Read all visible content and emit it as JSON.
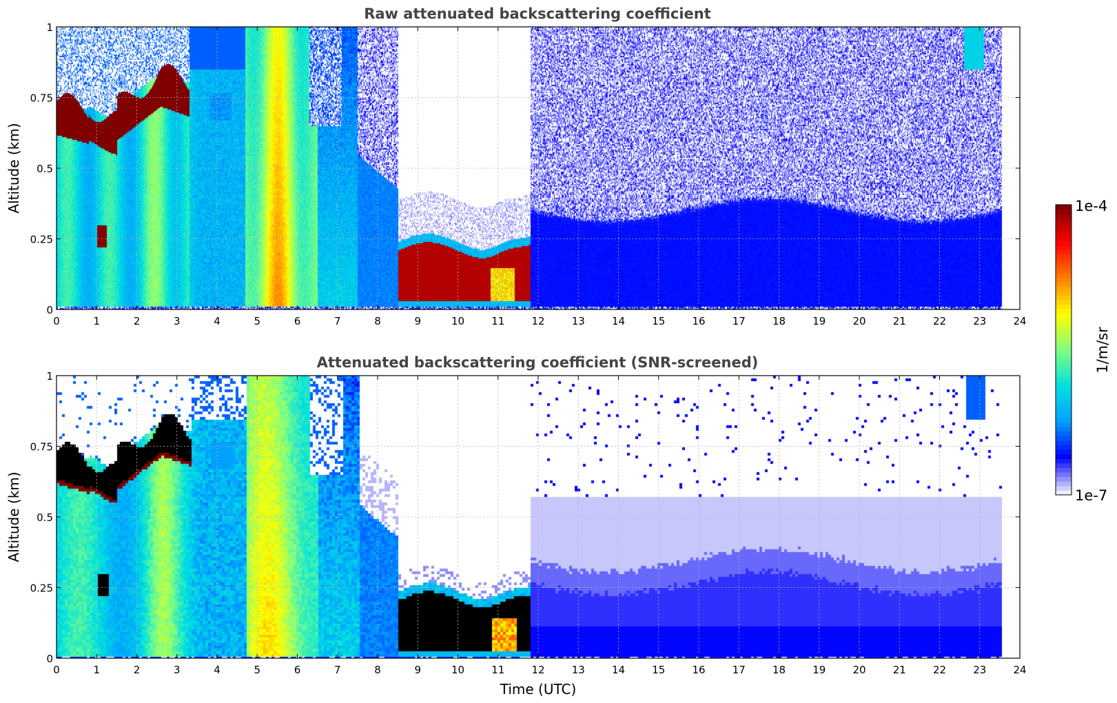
{
  "colors": {
    "colormap": [
      "#ededfb",
      "#0000ff",
      "#00a0ff",
      "#00e0e0",
      "#80ff80",
      "#ffff00",
      "#ff8000",
      "#ff0000",
      "#800000"
    ],
    "saturated_bottom_panel": "#000000",
    "grid": "#b4b4b4"
  },
  "colorbar": {
    "label": "1/m/sr",
    "min_label": "1e-7",
    "max_label": "1e-4",
    "scale": "log",
    "range": [
      1e-07,
      0.0001
    ]
  },
  "chart_data": [
    {
      "type": "heatmap",
      "title": "Raw attenuated backscattering coefficient",
      "xlabel": "",
      "ylabel": "Altitude (km)",
      "xlim": [
        0,
        24
      ],
      "ylim": [
        0,
        1
      ],
      "x_ticks": [
        "0",
        "1",
        "2",
        "3",
        "4",
        "5",
        "6",
        "7",
        "8",
        "9",
        "10",
        "11",
        "12",
        "13",
        "14",
        "15",
        "16",
        "17",
        "18",
        "19",
        "20",
        "21",
        "22",
        "23",
        "24"
      ],
      "y_ticks": [
        "0",
        "0.25",
        "0.5",
        "0.75",
        "1"
      ],
      "grid": true,
      "data_extent_hours": [
        0,
        23.55
      ],
      "features": [
        {
          "time_range": [
            0,
            3.3
          ],
          "altitude_range": [
            0.55,
            0.85
          ],
          "level": "max",
          "description": "cloud layer"
        },
        {
          "time_range": [
            1.0,
            1.25
          ],
          "altitude_range": [
            0.23,
            0.3
          ],
          "level": "max"
        },
        {
          "time_range": [
            8.5,
            11.8
          ],
          "altitude_range": [
            0.03,
            0.25
          ],
          "level": "max"
        },
        {
          "time_range": [
            4.7,
            6.5
          ],
          "altitude_range": [
            0,
            1
          ],
          "level": "high"
        },
        {
          "time_range": [
            12.0,
            23.55
          ],
          "altitude_range": [
            0,
            0.35
          ],
          "level": "low"
        }
      ]
    },
    {
      "type": "heatmap",
      "title": "Attenuated backscattering coefficient (SNR-screened)",
      "xlabel": "Time (UTC)",
      "ylabel": "Altitude (km)",
      "xlim": [
        0,
        24
      ],
      "ylim": [
        0,
        1
      ],
      "x_ticks": [
        "0",
        "1",
        "2",
        "3",
        "4",
        "5",
        "6",
        "7",
        "8",
        "9",
        "10",
        "11",
        "12",
        "13",
        "14",
        "15",
        "16",
        "17",
        "18",
        "19",
        "20",
        "21",
        "22",
        "23",
        "24"
      ],
      "y_ticks": [
        "0",
        "0.25",
        "0.5",
        "0.75",
        "1"
      ],
      "grid": true,
      "data_extent_hours": [
        0,
        23.55
      ],
      "features": [
        {
          "time_range": [
            0,
            3.3
          ],
          "altitude_range": [
            0.55,
            0.85
          ],
          "level": "saturated"
        },
        {
          "time_range": [
            1.0,
            1.25
          ],
          "altitude_range": [
            0.23,
            0.3
          ],
          "level": "saturated"
        },
        {
          "time_range": [
            8.5,
            11.8
          ],
          "altitude_range": [
            0.03,
            0.25
          ],
          "level": "saturated"
        },
        {
          "time_range": [
            4.7,
            6.5
          ],
          "altitude_range": [
            0,
            1
          ],
          "level": "high"
        },
        {
          "time_range": [
            12.0,
            23.55
          ],
          "altitude_range": [
            0,
            0.4
          ],
          "level": "low"
        }
      ]
    }
  ]
}
